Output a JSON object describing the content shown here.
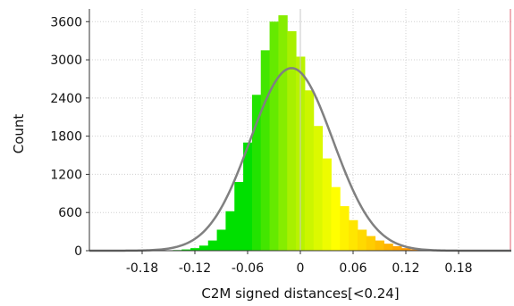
{
  "chart_data": {
    "type": "bar",
    "title": "",
    "xlabel": "C2M signed distances[<0.24]",
    "ylabel": "Count",
    "xlim": [
      -0.24,
      0.24
    ],
    "ylim": [
      0,
      3800
    ],
    "xticks": [
      -0.18,
      -0.12,
      -0.06,
      0,
      0.06,
      0.12,
      0.18
    ],
    "xtick_labels": [
      "-0.18",
      "-0.12",
      "-0.06",
      "0",
      "0.06",
      "0.12",
      "0.18"
    ],
    "yticks": [
      0,
      600,
      1200,
      1800,
      2400,
      3000,
      3600
    ],
    "ytick_labels": [
      "0",
      "600",
      "1200",
      "1800",
      "2400",
      "3000",
      "3600"
    ],
    "grid": true,
    "histogram": {
      "bin_width": 0.01,
      "bins": [
        {
          "x": -0.15,
          "y": 0
        },
        {
          "x": -0.14,
          "y": 10
        },
        {
          "x": -0.13,
          "y": 20
        },
        {
          "x": -0.12,
          "y": 40
        },
        {
          "x": -0.11,
          "y": 80
        },
        {
          "x": -0.1,
          "y": 160
        },
        {
          "x": -0.09,
          "y": 330
        },
        {
          "x": -0.08,
          "y": 620
        },
        {
          "x": -0.07,
          "y": 1080
        },
        {
          "x": -0.06,
          "y": 1700
        },
        {
          "x": -0.05,
          "y": 2450
        },
        {
          "x": -0.04,
          "y": 3150
        },
        {
          "x": -0.03,
          "y": 3600
        },
        {
          "x": -0.02,
          "y": 3700
        },
        {
          "x": -0.01,
          "y": 3450
        },
        {
          "x": 0.0,
          "y": 3050
        },
        {
          "x": 0.01,
          "y": 2520
        },
        {
          "x": 0.02,
          "y": 1960
        },
        {
          "x": 0.03,
          "y": 1450
        },
        {
          "x": 0.04,
          "y": 1000
        },
        {
          "x": 0.05,
          "y": 700
        },
        {
          "x": 0.06,
          "y": 480
        },
        {
          "x": 0.07,
          "y": 330
        },
        {
          "x": 0.08,
          "y": 230
        },
        {
          "x": 0.09,
          "y": 160
        },
        {
          "x": 0.1,
          "y": 110
        },
        {
          "x": 0.11,
          "y": 70
        },
        {
          "x": 0.12,
          "y": 40
        },
        {
          "x": 0.13,
          "y": 20
        },
        {
          "x": 0.14,
          "y": 8
        },
        {
          "x": 0.15,
          "y": 0
        }
      ]
    },
    "fit_curve": {
      "type": "gaussian",
      "mean": -0.01,
      "std": 0.047,
      "peak": 2870,
      "color": "#808080"
    },
    "marker_line": {
      "x": 0,
      "color": "#c8c8c8"
    },
    "right_edge_line": {
      "x": 0.24,
      "color": "#e06070"
    },
    "colormap": [
      "#00e000",
      "#a8f000",
      "#ffff00",
      "#ffc000",
      "#ff8000"
    ]
  }
}
